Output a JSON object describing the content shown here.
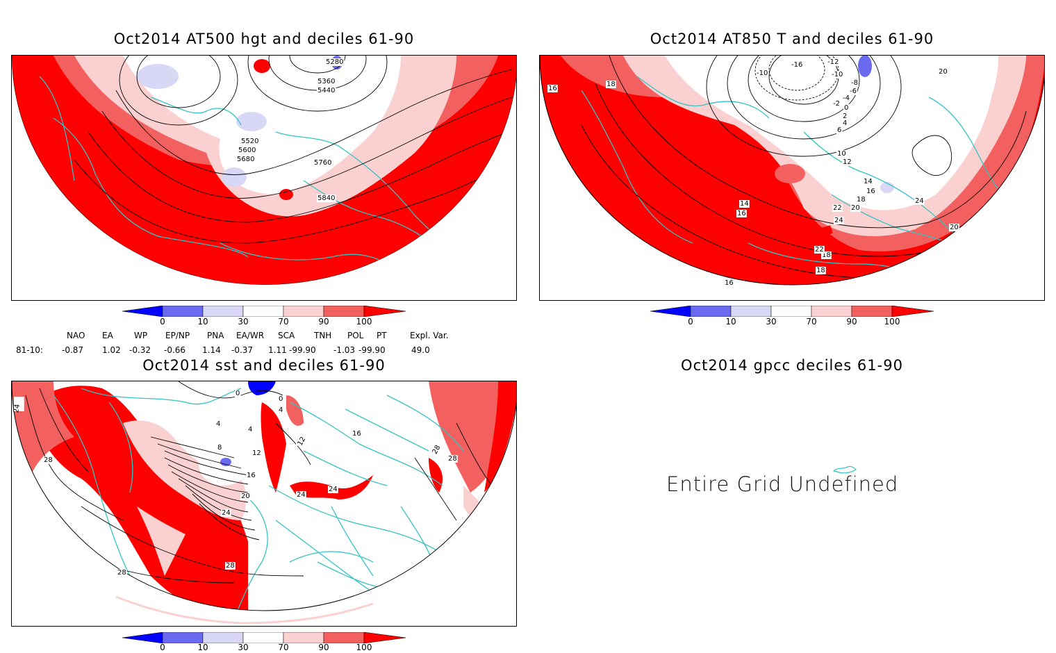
{
  "colors": {
    "deep_red": "#ff0000",
    "mid_red": "#f26060",
    "light_red": "#fbd0d0",
    "white": "#ffffff",
    "light_blue": "#d8d8f6",
    "mid_blue": "#6a6af0",
    "deep_blue": "#0000ff",
    "coast": "#33c3c3",
    "contour": "#000000"
  },
  "panels": {
    "z500": {
      "title": "Oct2014 AT500 hgt and deciles 61-90",
      "contour_labels": [
        "5280",
        "5360",
        "5440",
        "5520",
        "5600",
        "5680",
        "5760",
        "5840"
      ]
    },
    "t850": {
      "title": "Oct2014 AT850 T and deciles 61-90",
      "contour_labels": [
        "-16",
        "-12",
        "-10",
        "-10",
        "-8",
        "-6",
        "-4",
        "-2",
        "0",
        "2",
        "4",
        "6",
        "10",
        "12",
        "14",
        "14",
        "16",
        "16",
        "18",
        "18",
        "20",
        "20",
        "22",
        "22",
        "24",
        "24",
        "16",
        "18",
        "20",
        "18",
        "16"
      ]
    },
    "sst": {
      "title": "Oct2014 sst and deciles 61-90",
      "contour_labels": [
        "24",
        "28",
        "0",
        "0",
        "4",
        "4",
        "4",
        "8",
        "12",
        "16",
        "20",
        "24",
        "24",
        "24",
        "28",
        "28",
        "28",
        "12",
        "16",
        "28",
        "28"
      ]
    },
    "gpcc": {
      "title": "Oct2014 gpcc deciles 61-90",
      "message": "Entire Grid Undefined"
    }
  },
  "colorbar": {
    "ticks": [
      "0",
      "10",
      "30",
      "70",
      "90",
      "100"
    ]
  },
  "indices": {
    "header": [
      "NAO",
      "EA",
      "WP",
      "EP/NP",
      "PNA",
      "EA/WR",
      "SCA",
      "TNH",
      "POL",
      "PT",
      "Expl. Var."
    ],
    "row_label": "81-10:",
    "values": [
      "-0.87",
      "1.02",
      "-0.32",
      "-0.66",
      "1.14",
      "-0.37",
      "1.11",
      "-99.90",
      "-1.03",
      "-99.90",
      "49.0"
    ]
  }
}
